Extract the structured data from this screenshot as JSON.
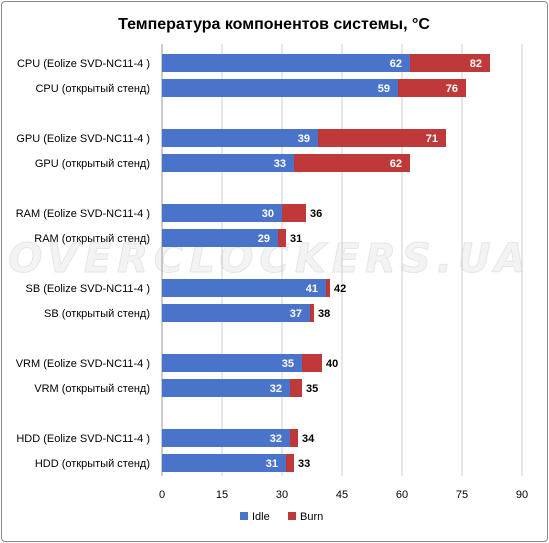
{
  "chart_data": {
    "type": "bar",
    "orientation": "horizontal",
    "title": "Температура компонентов системы, °C",
    "categories": [
      "CPU (Eolize SVD-NC11-4 )",
      "CPU (открытый стенд)",
      "GPU (Eolize SVD-NC11-4 )",
      "GPU (открытый стенд)",
      "RAM (Eolize SVD-NC11-4 )",
      "RAM (открытый стенд)",
      "SB (Eolize SVD-NC11-4 )",
      "SB (открытый стенд)",
      "VRM (Eolize SVD-NC11-4 )",
      "VRM (открытый стенд)",
      "HDD (Eolize SVD-NC11-4 )",
      "HDD (открытый стенд)"
    ],
    "groups": [
      [
        0,
        1
      ],
      [
        2,
        3
      ],
      [
        4,
        5
      ],
      [
        6,
        7
      ],
      [
        8,
        9
      ],
      [
        10,
        11
      ]
    ],
    "series": [
      {
        "name": "Idle",
        "color": "#4a74c9",
        "values": [
          62,
          59,
          39,
          33,
          30,
          29,
          41,
          37,
          35,
          32,
          32,
          31
        ]
      },
      {
        "name": "Burn",
        "color": "#c0393a",
        "values": [
          82,
          76,
          71,
          62,
          36,
          31,
          42,
          38,
          40,
          35,
          34,
          33
        ]
      }
    ],
    "xlim": [
      0,
      90
    ],
    "xticks": [
      0,
      15,
      30,
      45,
      60,
      75,
      90
    ],
    "xlabel": "",
    "ylabel": "",
    "grid": true,
    "legend_position": "bottom",
    "watermark": "OVERCLOCKERS.UA"
  }
}
